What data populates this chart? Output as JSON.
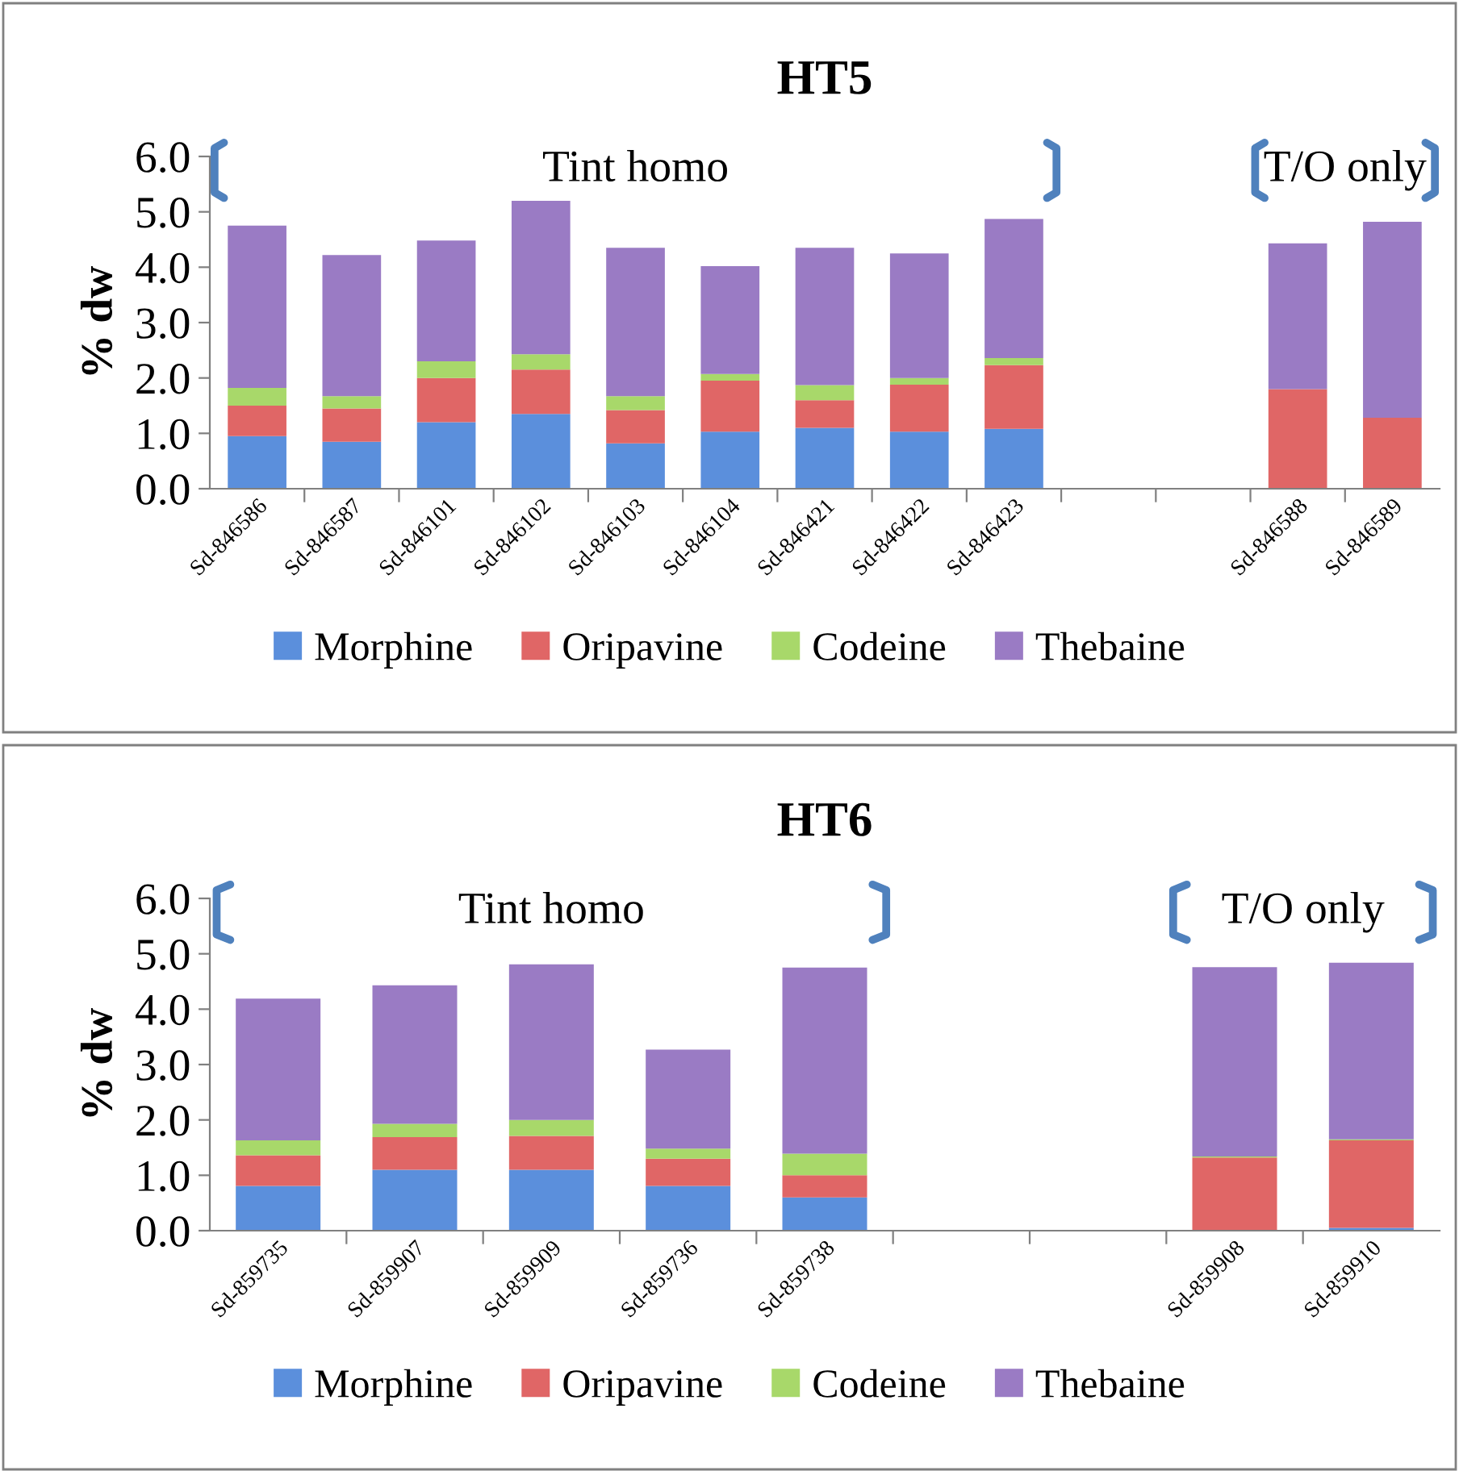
{
  "chart_data": [
    {
      "type": "bar",
      "title": "HT5",
      "ylabel": "% dw",
      "stacked": true,
      "legend": "bottom",
      "grid": false,
      "categories": [
        "Sd-846586",
        "Sd-846587",
        "Sd-846101",
        "Sd-846102",
        "Sd-846103",
        "Sd-846104",
        "Sd-846421",
        "Sd-846422",
        "Sd-846423",
        null,
        null,
        "Sd-846588",
        "Sd-846589"
      ],
      "series": [
        {
          "name": "Morphine",
          "color": "#5b8fdc",
          "values": [
            0.95,
            0.85,
            1.2,
            1.35,
            0.82,
            1.03,
            1.1,
            1.03,
            1.08,
            null,
            null,
            0,
            0
          ]
        },
        {
          "name": "Oripavine",
          "color": "#e06666",
          "values": [
            0.55,
            0.6,
            0.8,
            0.8,
            0.6,
            0.92,
            0.5,
            0.85,
            1.15,
            null,
            null,
            1.8,
            1.28
          ]
        },
        {
          "name": "Codeine",
          "color": "#a8d86a",
          "values": [
            0.32,
            0.22,
            0.3,
            0.28,
            0.25,
            0.12,
            0.27,
            0.12,
            0.13,
            null,
            null,
            0,
            0
          ]
        },
        {
          "name": "Thebaine",
          "color": "#9a7bc4",
          "values": [
            2.93,
            2.55,
            2.18,
            2.77,
            2.68,
            1.95,
            2.48,
            2.25,
            2.51,
            null,
            null,
            2.63,
            3.54
          ]
        }
      ],
      "ylim": [
        0,
        6
      ],
      "yticks": [
        {
          "value": 0,
          "label": "0.0"
        },
        {
          "value": 1,
          "label": "1.0"
        },
        {
          "value": 2,
          "label": "2.0"
        },
        {
          "value": 3,
          "label": "3.0"
        },
        {
          "value": 4,
          "label": "4.0"
        },
        {
          "value": 5,
          "label": "5.0"
        },
        {
          "value": 6,
          "label": "6.0"
        }
      ],
      "annotations": [
        "Tint homo",
        "T/O only"
      ]
    },
    {
      "type": "bar",
      "title": "HT6",
      "ylabel": "% dw",
      "stacked": true,
      "legend": "bottom",
      "grid": false,
      "categories": [
        "Sd-859735",
        "Sd-859907",
        "Sd-859909",
        "Sd-859736",
        "Sd-859738",
        null,
        null,
        "Sd-859908",
        "Sd-859910"
      ],
      "series": [
        {
          "name": "Morphine",
          "color": "#5b8fdc",
          "values": [
            0.81,
            1.1,
            1.1,
            0.81,
            0.6,
            null,
            null,
            0,
            0.05
          ]
        },
        {
          "name": "Oripavine",
          "color": "#e06666",
          "values": [
            0.55,
            0.59,
            0.61,
            0.49,
            0.4,
            null,
            null,
            1.32,
            1.58
          ]
        },
        {
          "name": "Codeine",
          "color": "#a8d86a",
          "values": [
            0.27,
            0.24,
            0.29,
            0.18,
            0.39,
            null,
            null,
            0.02,
            0.02
          ]
        },
        {
          "name": "Thebaine",
          "color": "#9a7bc4",
          "values": [
            2.56,
            2.5,
            2.81,
            1.79,
            3.36,
            null,
            null,
            3.42,
            3.19
          ]
        }
      ],
      "ylim": [
        0,
        6
      ],
      "yticks": [
        {
          "value": 0,
          "label": "0.0"
        },
        {
          "value": 1,
          "label": "1.0"
        },
        {
          "value": 2,
          "label": "2.0"
        },
        {
          "value": 3,
          "label": "3.0"
        },
        {
          "value": 4,
          "label": "4.0"
        },
        {
          "value": 5,
          "label": "5.0"
        },
        {
          "value": 6,
          "label": "6.0"
        }
      ],
      "annotations": [
        "Tint homo",
        "T/O only"
      ]
    }
  ]
}
